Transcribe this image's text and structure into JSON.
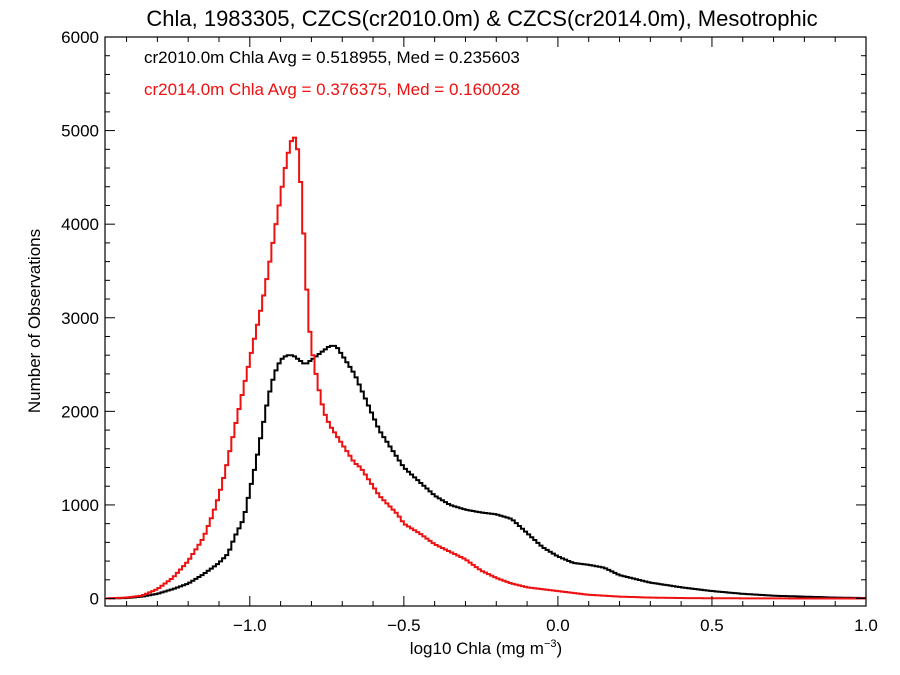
{
  "chart_data": {
    "type": "line",
    "title": "Chla, 1983305, CZCS(cr2010.0m) & CZCS(cr2014.0m), Mesotrophic",
    "xlabel_main": "log10 Chla (mg m",
    "xlabel_sup": "−3",
    "xlabel_close": ")",
    "ylabel": "Number of Observations",
    "xlim": [
      -1.47,
      1.0
    ],
    "ylim": [
      -80,
      6000
    ],
    "x_ticks": [
      -1.0,
      -0.5,
      0.0,
      0.5,
      1.0
    ],
    "x_tick_labels": [
      "−1.0",
      "−0.5",
      "0.0",
      "0.5",
      "1.0"
    ],
    "y_ticks": [
      0,
      1000,
      2000,
      3000,
      4000,
      5000,
      6000
    ],
    "y_tick_labels": [
      "0",
      "1000",
      "2000",
      "3000",
      "4000",
      "5000",
      "6000"
    ],
    "legend": [
      {
        "text": "cr2010.0m Chla Avg = 0.518955, Med = 0.235603",
        "color": "#000000"
      },
      {
        "text": "cr2014.0m Chla Avg = 0.376375, Med = 0.160028",
        "color": "#ee1111"
      }
    ],
    "series": [
      {
        "color": "#000000",
        "x": [
          -1.47,
          -1.4,
          -1.35,
          -1.3,
          -1.25,
          -1.2,
          -1.15,
          -1.1,
          -1.07,
          -1.05,
          -1.02,
          -1.0,
          -0.98,
          -0.96,
          -0.94,
          -0.92,
          -0.9,
          -0.88,
          -0.86,
          -0.84,
          -0.82,
          -0.8,
          -0.78,
          -0.76,
          -0.74,
          -0.72,
          -0.7,
          -0.68,
          -0.66,
          -0.64,
          -0.62,
          -0.6,
          -0.58,
          -0.55,
          -0.52,
          -0.5,
          -0.45,
          -0.4,
          -0.35,
          -0.3,
          -0.25,
          -0.2,
          -0.15,
          -0.1,
          -0.05,
          0.0,
          0.05,
          0.1,
          0.15,
          0.2,
          0.3,
          0.4,
          0.5,
          0.6,
          0.7,
          0.8,
          0.9,
          1.0
        ],
        "y": [
          0,
          5,
          20,
          50,
          100,
          160,
          260,
          380,
          480,
          650,
          850,
          1150,
          1450,
          1800,
          2150,
          2400,
          2550,
          2600,
          2600,
          2550,
          2500,
          2550,
          2600,
          2650,
          2700,
          2700,
          2600,
          2500,
          2400,
          2250,
          2100,
          1950,
          1800,
          1650,
          1500,
          1400,
          1250,
          1100,
          1000,
          950,
          920,
          900,
          850,
          700,
          550,
          450,
          380,
          360,
          330,
          250,
          170,
          120,
          80,
          50,
          30,
          20,
          10,
          5
        ]
      },
      {
        "color": "#ee1111",
        "x": [
          -1.47,
          -1.4,
          -1.35,
          -1.3,
          -1.25,
          -1.2,
          -1.15,
          -1.12,
          -1.1,
          -1.08,
          -1.06,
          -1.04,
          -1.02,
          -1.0,
          -0.98,
          -0.96,
          -0.94,
          -0.92,
          -0.9,
          -0.88,
          -0.86,
          -0.85,
          -0.84,
          -0.83,
          -0.82,
          -0.81,
          -0.8,
          -0.78,
          -0.76,
          -0.74,
          -0.72,
          -0.7,
          -0.68,
          -0.66,
          -0.64,
          -0.62,
          -0.6,
          -0.58,
          -0.55,
          -0.52,
          -0.5,
          -0.45,
          -0.4,
          -0.35,
          -0.3,
          -0.25,
          -0.2,
          -0.15,
          -0.1,
          -0.05,
          0.0,
          0.05,
          0.1,
          0.2,
          0.3,
          0.4,
          0.5,
          0.7,
          1.0
        ],
        "y": [
          0,
          10,
          30,
          100,
          220,
          400,
          650,
          900,
          1100,
          1350,
          1650,
          1950,
          2250,
          2550,
          2850,
          3150,
          3500,
          3900,
          4300,
          4700,
          4950,
          4900,
          4700,
          4200,
          3600,
          3000,
          2700,
          2300,
          2000,
          1850,
          1750,
          1650,
          1550,
          1450,
          1400,
          1300,
          1200,
          1100,
          1000,
          900,
          800,
          700,
          580,
          500,
          420,
          300,
          220,
          160,
          120,
          100,
          80,
          60,
          40,
          20,
          10,
          5,
          3,
          1,
          0
        ]
      }
    ]
  }
}
